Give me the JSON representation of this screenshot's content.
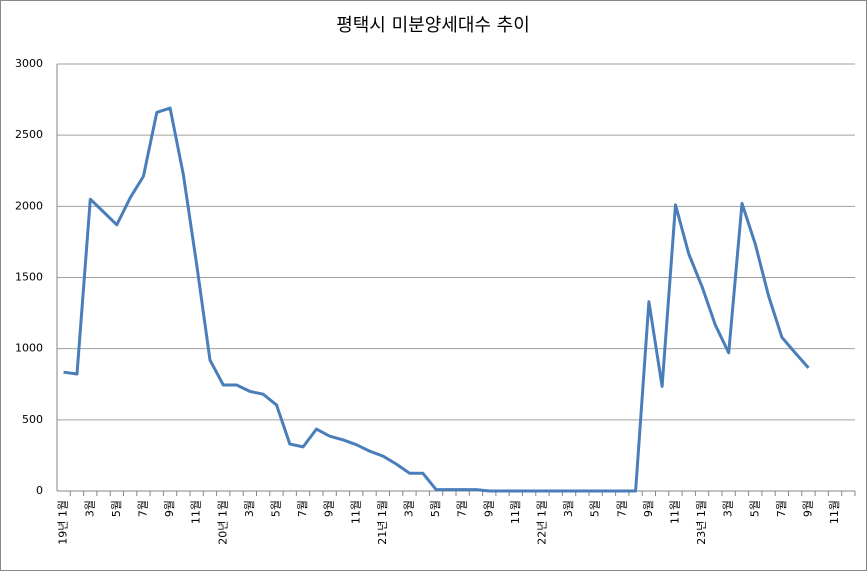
{
  "chart_data": {
    "type": "line",
    "title": "평택시 미분양세대수 추이",
    "categories": [
      "19년 1월",
      null,
      "3월",
      null,
      "5월",
      null,
      "7월",
      null,
      "9월",
      null,
      "11월",
      null,
      "20년 1월",
      null,
      "3월",
      null,
      "5월",
      null,
      "7월",
      null,
      "9월",
      null,
      "11월",
      null,
      "21년 1월",
      null,
      "3월",
      null,
      "5월",
      null,
      "7월",
      null,
      "9월",
      null,
      "11월",
      null,
      "22년 1월",
      null,
      "3월",
      null,
      "5월",
      null,
      "7월",
      null,
      "9월",
      null,
      "11월",
      null,
      "23년 1월",
      null,
      "3월",
      null,
      "5월",
      null,
      "7월",
      null,
      "9월",
      null,
      "11월",
      null
    ],
    "series": [
      {
        "name": "미분양세대수",
        "color": "#4a7ebb",
        "values": [
          835,
          822,
          2050,
          1960,
          1870,
          2060,
          2210,
          2660,
          2690,
          2220,
          1590,
          920,
          745,
          745,
          700,
          680,
          605,
          330,
          310,
          435,
          385,
          360,
          325,
          280,
          245,
          190,
          125,
          125,
          10,
          10,
          10,
          10,
          0,
          0,
          0,
          0,
          0,
          0,
          0,
          0,
          0,
          0,
          0,
          0,
          1330,
          735,
          2010,
          1665,
          1435,
          1165,
          970,
          2020,
          1735,
          1370,
          1080,
          970,
          865,
          null,
          null,
          null
        ]
      }
    ],
    "ylim": [
      0,
      3000
    ],
    "yticks": [
      0,
      500,
      1000,
      1500,
      2000,
      2500,
      3000
    ],
    "grid": true
  }
}
